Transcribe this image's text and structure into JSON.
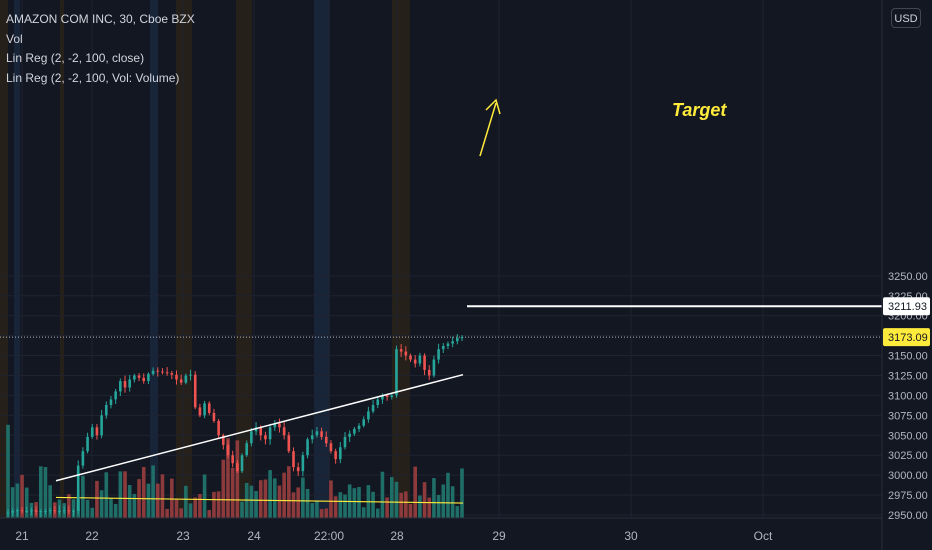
{
  "legend": {
    "symbol": "AMAZON COM INC, 30, Cboe BZX",
    "vol": "Vol",
    "linreg_close": "Lin Reg (2, -2, 100, close)",
    "linreg_volume": "Lin Reg (2, -2, 100, Vol: Volume)"
  },
  "currency": "USD",
  "annotation": {
    "target_text": "Target",
    "target_price": 3211.93,
    "target_price_label": "3211.93"
  },
  "last_price": 3173.09,
  "last_price_label": "3173.09",
  "colors": {
    "background": "#131722",
    "up": "#26a69a",
    "down": "#ef5350",
    "up_volume": "#1f6f68",
    "down_volume": "#8c3a3b",
    "target": "#ffeb3b",
    "grid": "#1f2330",
    "axis_text": "#b2b5be",
    "session_blue": "#1b2a40",
    "session_orange": "#2e2418"
  },
  "chart_data": {
    "type": "candlestick",
    "title": "AMAZON COM INC, 30, Cboe BZX",
    "y_axis": {
      "ylim": [
        2950,
        3260
      ],
      "ticks": [
        2950,
        2975,
        3000,
        3025,
        3050,
        3075,
        3100,
        3125,
        3150,
        3175,
        3200,
        3225,
        3250
      ],
      "tick_labels": [
        "2950.00",
        "2975.00",
        "3000.00",
        "3025.00",
        "3050.00",
        "3075.00",
        "3100.00",
        "3125.00",
        "3150.00",
        "3175.00",
        "3200.00",
        "3225.00",
        "3250.00"
      ]
    },
    "x_axis": {
      "labels": [
        "21",
        "22",
        "23",
        "24",
        "22:00",
        "28",
        "29",
        "30",
        "Oct"
      ]
    },
    "price_closes": [
      2953,
      2955,
      2956,
      2955,
      2955,
      2956,
      2954,
      2955,
      2955,
      2956,
      2955,
      2955,
      2956,
      2955,
      2955,
      3012,
      3030,
      3048,
      3060,
      3050,
      3075,
      3088,
      3095,
      3105,
      3118,
      3110,
      3120,
      3125,
      3122,
      3118,
      3127,
      3131,
      3130,
      3129,
      3128,
      3126,
      3120,
      3116,
      3125,
      3126,
      3085,
      3075,
      3090,
      3078,
      3068,
      3050,
      3038,
      3025,
      3015,
      3005,
      3025,
      3040,
      3055,
      3060,
      3050,
      3045,
      3060,
      3065,
      3060,
      3050,
      3030,
      3010,
      3005,
      3025,
      3045,
      3050,
      3055,
      3048,
      3040,
      3030,
      3020,
      3035,
      3048,
      3052,
      3058,
      3062,
      3070,
      3080,
      3088,
      3095,
      3100,
      3098,
      3100,
      3158,
      3155,
      3150,
      3145,
      3140,
      3150,
      3132,
      3125,
      3145,
      3158,
      3162,
      3165,
      3168,
      3172,
      3173
    ],
    "volume_regression": {
      "start": 2972,
      "end": 2965
    },
    "trendline": {
      "start": 2993,
      "end": 3126
    },
    "target_price": 3211.93,
    "last_price": 3173.09
  }
}
